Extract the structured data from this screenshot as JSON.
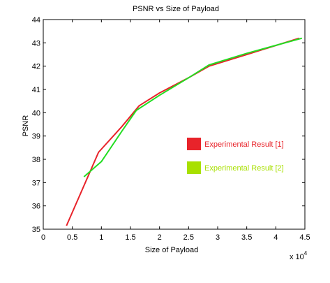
{
  "chart_data": {
    "type": "line",
    "title": "PSNR vs Size of Payload",
    "xlabel": "Size of Payload",
    "ylabel": "PSNR",
    "x_multiplier_label": "x 10",
    "x_multiplier_exponent": "4",
    "xlim": [
      0,
      4.5
    ],
    "ylim": [
      35,
      44
    ],
    "xticks": [
      "0",
      "0.5",
      "1",
      "1.5",
      "2",
      "2.5",
      "3",
      "3.5",
      "4",
      "4.5"
    ],
    "yticks": [
      "35",
      "36",
      "37",
      "38",
      "39",
      "40",
      "41",
      "42",
      "43",
      "44"
    ],
    "grid": false,
    "legend_position": "right",
    "series": [
      {
        "name": "Experimental Result [1]",
        "color": "#e8232a",
        "x": [
          0.4,
          0.95,
          1.35,
          1.65,
          2.0,
          2.5,
          2.85,
          3.5,
          4.4
        ],
        "y": [
          35.15,
          38.3,
          39.4,
          40.3,
          40.85,
          41.5,
          42.0,
          42.5,
          43.2
        ]
      },
      {
        "name": "Experimental Result [2]",
        "color": "#22dd22",
        "legend_color": "#a8e000",
        "x": [
          0.7,
          1.0,
          1.35,
          1.6,
          2.0,
          2.5,
          2.85,
          3.5,
          4.45
        ],
        "y": [
          37.25,
          37.9,
          39.2,
          40.1,
          40.75,
          41.5,
          42.05,
          42.55,
          43.2
        ]
      }
    ]
  }
}
